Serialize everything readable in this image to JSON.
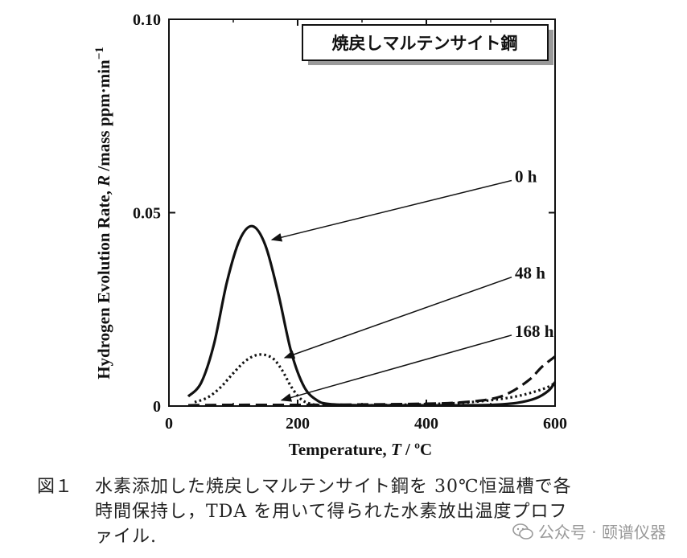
{
  "chart_data": {
    "type": "line",
    "title": "焼戻しマルテンサイト鋼",
    "xlabel_prefix": "Temperature, ",
    "xlabel_var": "T",
    "xlabel_unit": " / ºC",
    "ylabel_prefix": "Hydrogen Evolution Rate, ",
    "ylabel_var": "R",
    "ylabel_unit": " /mass ppm·min",
    "ylabel_exp": "−1",
    "xlim": [
      0,
      600
    ],
    "ylim": [
      0,
      0.1
    ],
    "x_ticks": [
      0,
      200,
      400,
      600
    ],
    "x_tick_labels": [
      "0",
      "200",
      "400",
      "600"
    ],
    "y_ticks": [
      0,
      0.05,
      0.1
    ],
    "y_tick_labels": [
      "0",
      "0.05",
      "0.10"
    ],
    "grid": false,
    "series": [
      {
        "name": "0 h",
        "style": "solid",
        "x": [
          30,
          50,
          70,
          90,
          110,
          130,
          150,
          170,
          190,
          210,
          230,
          250,
          300,
          350,
          400,
          450,
          500,
          540,
          570,
          590,
          600
        ],
        "values": [
          0.0025,
          0.006,
          0.016,
          0.032,
          0.043,
          0.0465,
          0.0415,
          0.029,
          0.014,
          0.005,
          0.0015,
          0.0005,
          0.0002,
          0.0002,
          0.0002,
          0.0002,
          0.0003,
          0.0008,
          0.002,
          0.004,
          0.0062
        ]
      },
      {
        "name": "48 h",
        "style": "dotted",
        "x": [
          40,
          60,
          80,
          100,
          120,
          140,
          160,
          175,
          190,
          205,
          220,
          240,
          300,
          350,
          400,
          450,
          500,
          540,
          570,
          590,
          600
        ],
        "values": [
          0.001,
          0.0022,
          0.0048,
          0.0085,
          0.0118,
          0.0133,
          0.0125,
          0.0095,
          0.005,
          0.0018,
          0.0006,
          0.0002,
          0.0002,
          0.0003,
          0.0005,
          0.0008,
          0.0015,
          0.0025,
          0.0038,
          0.005,
          0.006
        ]
      },
      {
        "name": "168 h",
        "style": "dashed",
        "x": [
          30,
          100,
          200,
          300,
          400,
          450,
          500,
          530,
          560,
          580,
          600
        ],
        "values": [
          0.0002,
          0.0003,
          0.0003,
          0.0004,
          0.0006,
          0.0009,
          0.0018,
          0.0035,
          0.0068,
          0.0102,
          0.0128
        ]
      }
    ],
    "annotations": [
      {
        "text": "0 h",
        "label_x": 360,
        "label_y": 0.055,
        "arrow_to_x": 160,
        "arrow_to_y": 0.043
      },
      {
        "text": "48 h",
        "label_x": 360,
        "label_y": 0.03,
        "arrow_to_x": 180,
        "arrow_to_y": 0.0125
      },
      {
        "text": "168 h",
        "label_x": 360,
        "label_y": 0.015,
        "arrow_to_x": 175,
        "arrow_to_y": 0.0015
      }
    ]
  },
  "caption": {
    "label": "図１",
    "lines": [
      "水素添加した焼戻しマルテンサイト鋼を 30℃恒温槽で各",
      "時間保持し，TDA を用いて得られた水素放出温度プロフ",
      "ァイル."
    ]
  },
  "watermark": {
    "text": "公众号 · 颐谱仪器",
    "icon": "wechat-icon"
  }
}
